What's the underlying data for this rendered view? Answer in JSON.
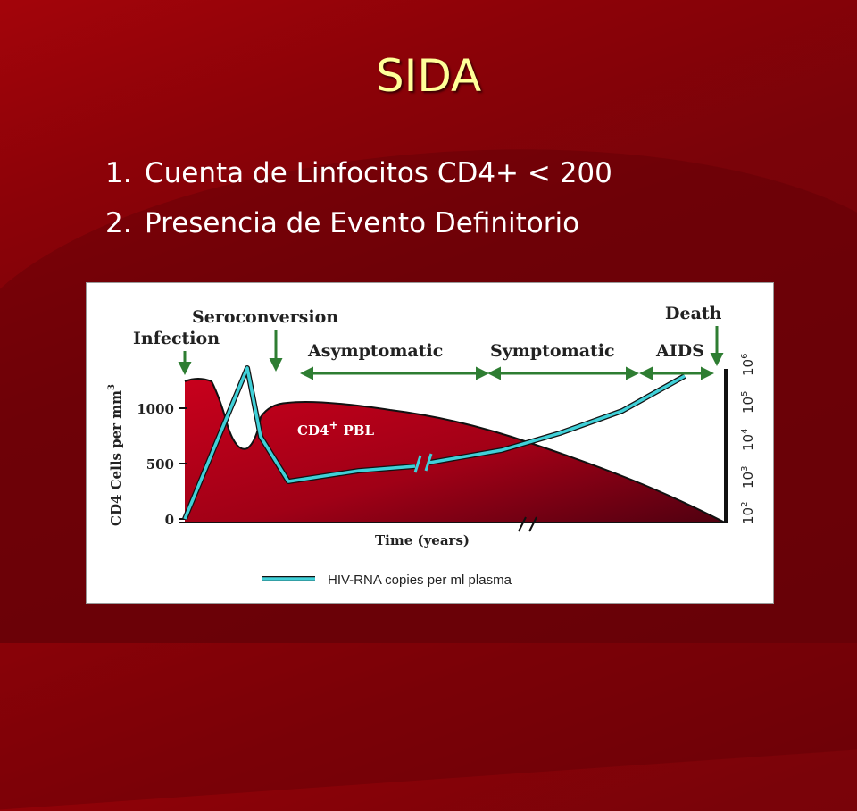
{
  "slide": {
    "title": "SIDA",
    "bullets": [
      {
        "number": "1.",
        "text": "Cuenta de Linfocitos CD4+ < 200"
      },
      {
        "number": "2.",
        "text": "Presencia de Evento Definitorio"
      }
    ]
  },
  "figure": {
    "event_labels": {
      "infection": "Infection",
      "seroconversion": "Seroconversion",
      "death": "Death"
    },
    "phase_labels": {
      "asymptomatic": "Asymptomatic",
      "symptomatic": "Symptomatic",
      "aids": "AIDS"
    },
    "y_left_label_main": "CD4 Cells per mm",
    "y_left_label_sup": "3",
    "y_left_ticks": [
      "1000",
      "500",
      "0"
    ],
    "y_right_ticks": [
      {
        "base": "10",
        "exp": "2"
      },
      {
        "base": "10",
        "exp": "3"
      },
      {
        "base": "10",
        "exp": "4"
      },
      {
        "base": "10",
        "exp": "5"
      },
      {
        "base": "10",
        "exp": "6"
      }
    ],
    "x_label": "Time (years)",
    "area_label_main": "CD4",
    "area_label_sup": "+",
    "area_label_suffix": " PBL",
    "legend_label": "HIV-RNA copies per ml plasma",
    "colors": {
      "cd4_area_light": "#c00018",
      "cd4_area_dark": "#5a0010",
      "hiv_line": "#40d0d8",
      "arrow": "#2e7d32",
      "text": "#222222"
    }
  }
}
